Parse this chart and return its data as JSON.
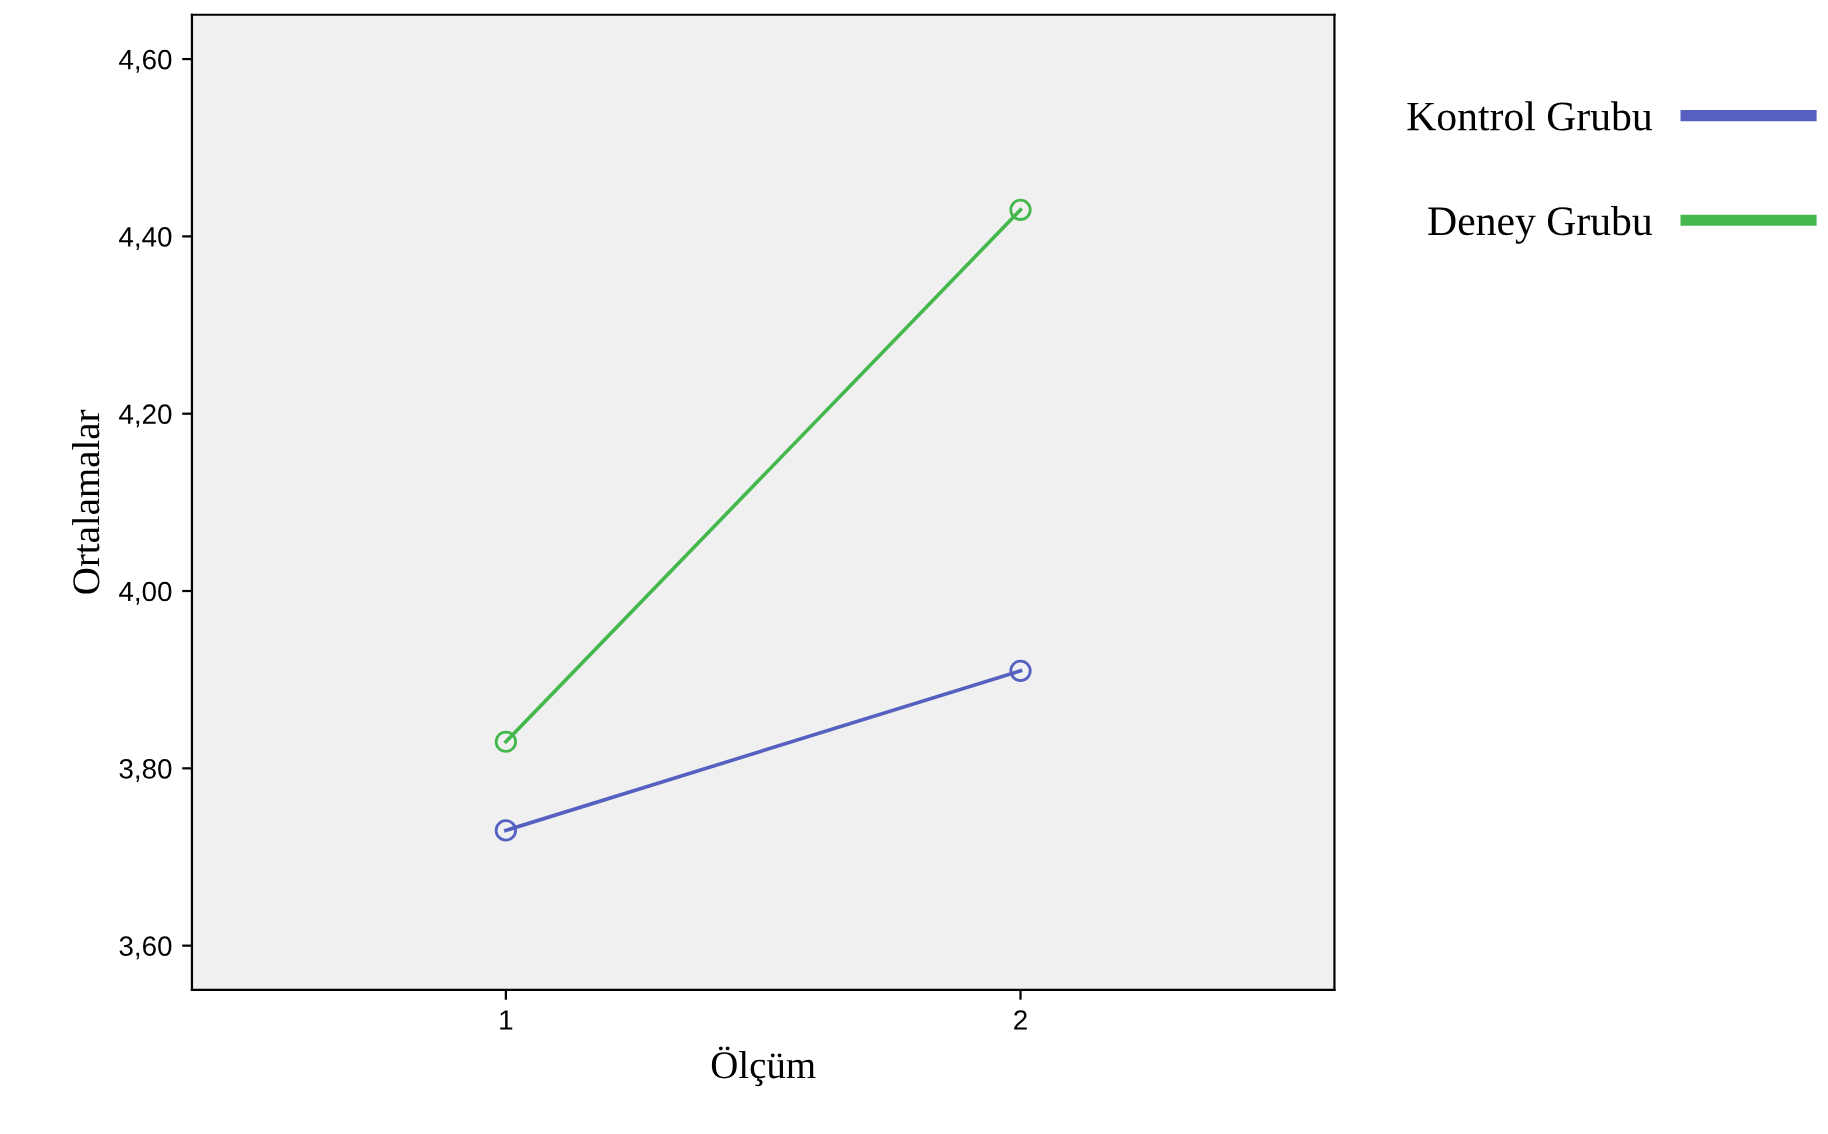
{
  "chart_data": {
    "type": "line",
    "xlabel": "Ölçüm",
    "ylabel": "Ortalamalar",
    "x": [
      1,
      2
    ],
    "series": [
      {
        "name": "Kontrol Grubu",
        "color": "#5560c0",
        "values": [
          3.73,
          3.91
        ]
      },
      {
        "name": "Deney Grubu",
        "color": "#44b84c",
        "values": [
          3.83,
          4.43
        ]
      }
    ],
    "xlim": [
      0.39,
      2.61
    ],
    "xticks": [
      1,
      2
    ],
    "ylim": [
      3.55,
      4.65
    ],
    "yticks": [
      {
        "value": 3.6,
        "label": "3,60"
      },
      {
        "value": 3.8,
        "label": "3,80"
      },
      {
        "value": 4.0,
        "label": "4,00"
      },
      {
        "value": 4.2,
        "label": "4,20"
      },
      {
        "value": 4.4,
        "label": "4,40"
      },
      {
        "value": 4.6,
        "label": "4,60"
      }
    ],
    "grid": false,
    "legend": "right",
    "marker": "circle",
    "line_style": "solid"
  }
}
